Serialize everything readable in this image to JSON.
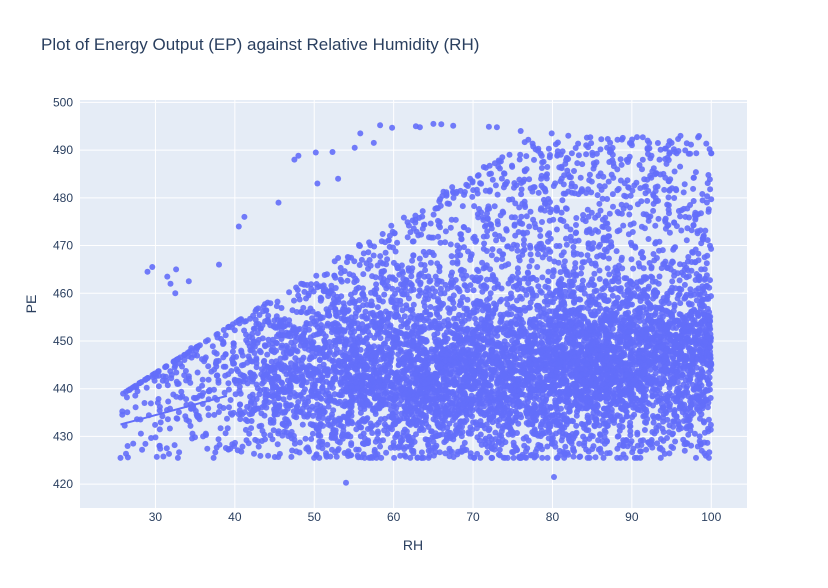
{
  "chart_data": {
    "type": "scatter",
    "title": "Plot of Energy Output (EP) against Relative Humidity (RH)",
    "xlabel": "RH",
    "ylabel": "PE",
    "xlim": [
      20.5,
      104.5
    ],
    "ylim": [
      415,
      500.5
    ],
    "x_ticks": [
      30,
      40,
      50,
      60,
      70,
      80,
      90,
      100
    ],
    "y_ticks": [
      420,
      430,
      440,
      450,
      460,
      470,
      480,
      490,
      500
    ],
    "grid": true,
    "legend": "none",
    "colors": {
      "marker": "#636efa",
      "plot_background": "#e5ecf6",
      "grid": "#ffffff",
      "text": "#2a3f5f"
    },
    "marker_opacity": 0.9,
    "sample_points": [
      [
        25.6,
        425.5
      ],
      [
        26.5,
        428.0
      ],
      [
        27.2,
        428.5
      ],
      [
        29.0,
        464.5
      ],
      [
        29.6,
        465.5
      ],
      [
        30.5,
        428.0
      ],
      [
        31.0,
        425.8
      ],
      [
        31.5,
        463.5
      ],
      [
        31.9,
        462.0
      ],
      [
        32.6,
        465.0
      ],
      [
        32.5,
        460.0
      ],
      [
        34.2,
        462.5
      ],
      [
        34.5,
        448.5
      ],
      [
        36.0,
        430.0
      ],
      [
        38.0,
        466.0
      ],
      [
        40.5,
        474.0
      ],
      [
        41.2,
        476.0
      ],
      [
        45.5,
        479.0
      ],
      [
        47.5,
        488.0
      ],
      [
        48.0,
        488.8
      ],
      [
        50.2,
        489.5
      ],
      [
        50.4,
        483.0
      ],
      [
        52.3,
        489.6
      ],
      [
        53.0,
        484.0
      ],
      [
        54.0,
        420.3
      ],
      [
        55.1,
        490.5
      ],
      [
        55.8,
        493.5
      ],
      [
        57.5,
        491.5
      ],
      [
        58.3,
        495.2
      ],
      [
        59.8,
        494.7
      ],
      [
        62.8,
        495.0
      ],
      [
        63.3,
        494.8
      ],
      [
        65.0,
        495.5
      ],
      [
        66.0,
        495.4
      ],
      [
        67.5,
        495.1
      ],
      [
        72.0,
        494.9
      ],
      [
        73.0,
        494.8
      ],
      [
        76.0,
        494.0
      ],
      [
        79.9,
        493.5
      ],
      [
        80.2,
        421.5
      ],
      [
        82.0,
        493.0
      ],
      [
        90.0,
        491.0
      ],
      [
        92.0,
        492.0
      ],
      [
        95.0,
        491.5
      ],
      [
        100.0,
        489.3
      ],
      [
        100.0,
        445.0
      ],
      [
        99.7,
        433.5
      ],
      [
        97.5,
        438.0
      ]
    ],
    "trendline": {
      "x": [
        25.6,
        39.0
      ],
      "y": [
        432.5,
        438.5
      ]
    }
  }
}
